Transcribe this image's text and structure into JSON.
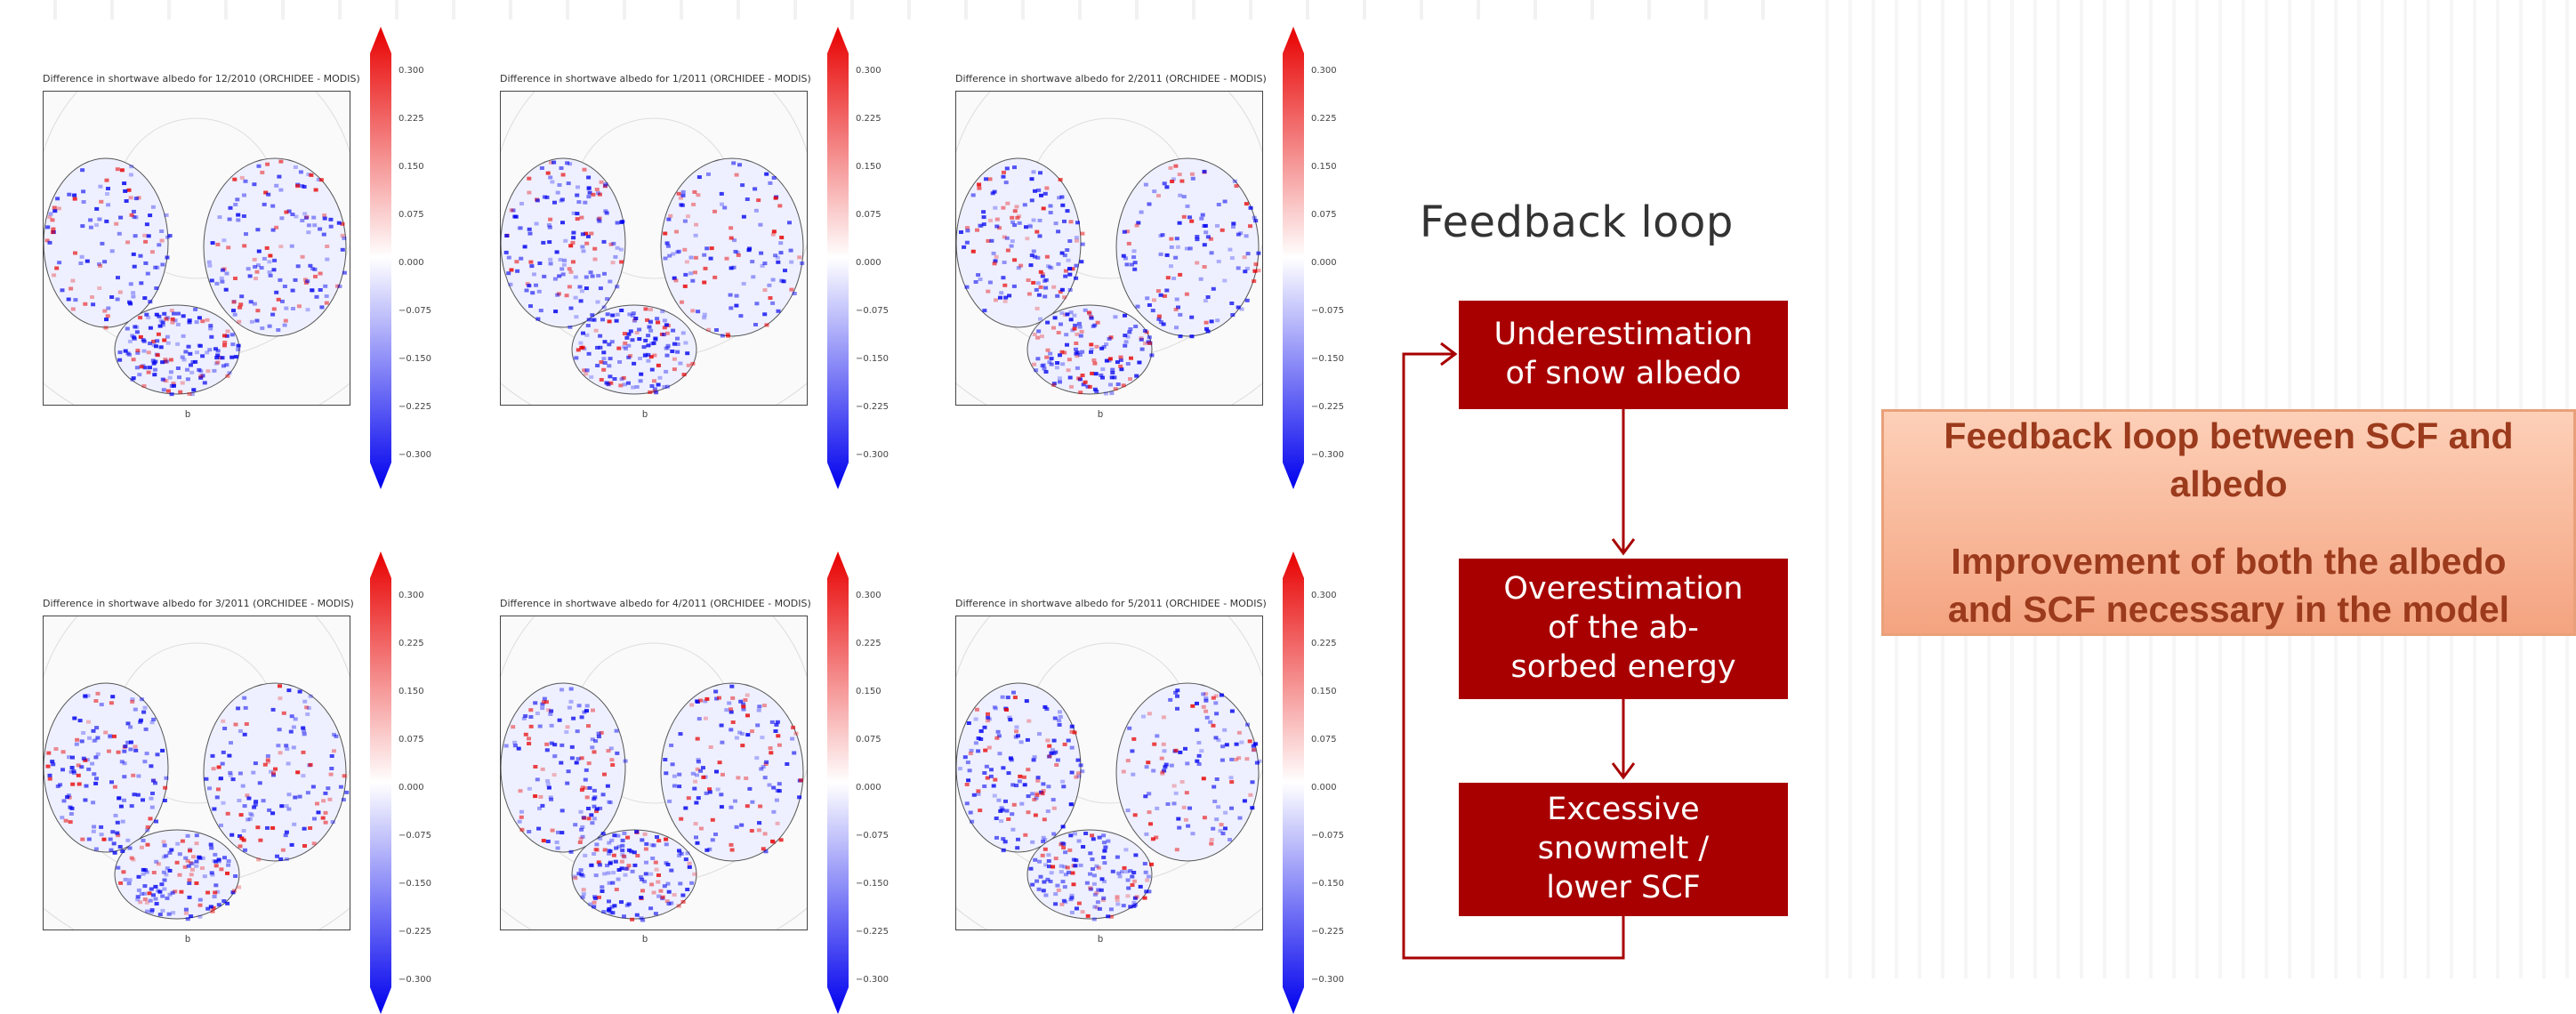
{
  "panels": [
    {
      "title": "Difference in shortwave albedo for 12/2010 (ORCHIDEE - MODIS)",
      "xlabel": "b"
    },
    {
      "title": "Difference in shortwave albedo for 1/2011 (ORCHIDEE - MODIS)",
      "xlabel": "b"
    },
    {
      "title": "Difference in shortwave albedo for 2/2011 (ORCHIDEE - MODIS)",
      "xlabel": "b"
    },
    {
      "title": "Difference in shortwave albedo for 3/2011 (ORCHIDEE - MODIS)",
      "xlabel": "b"
    },
    {
      "title": "Difference in shortwave albedo for 4/2011 (ORCHIDEE - MODIS)",
      "xlabel": "b"
    },
    {
      "title": "Difference in shortwave albedo for 5/2011 (ORCHIDEE - MODIS)",
      "xlabel": "b"
    }
  ],
  "colorbar": {
    "ticks": [
      "0.300",
      "0.225",
      "0.150",
      "0.075",
      "0.000",
      "−0.075",
      "−0.150",
      "−0.225",
      "−0.300"
    ],
    "colors": {
      "high": "#e80000",
      "mid": "#ffffff",
      "low": "#0000ee"
    }
  },
  "feedback": {
    "title": "Feedback loop",
    "steps": [
      {
        "lines": [
          "Underestimation",
          "of snow albedo"
        ]
      },
      {
        "lines": [
          "Overestimation",
          "of the ab-",
          "sorbed energy"
        ]
      },
      {
        "lines": [
          "Excessive",
          "snowmelt /",
          "lower SCF"
        ]
      }
    ],
    "box_color": "#a80000"
  },
  "note": {
    "line1": "Feedback loop between SCF and",
    "line2": "albedo",
    "line3": "Improvement of both the albedo",
    "line4": "and SCF necessary in the model"
  }
}
